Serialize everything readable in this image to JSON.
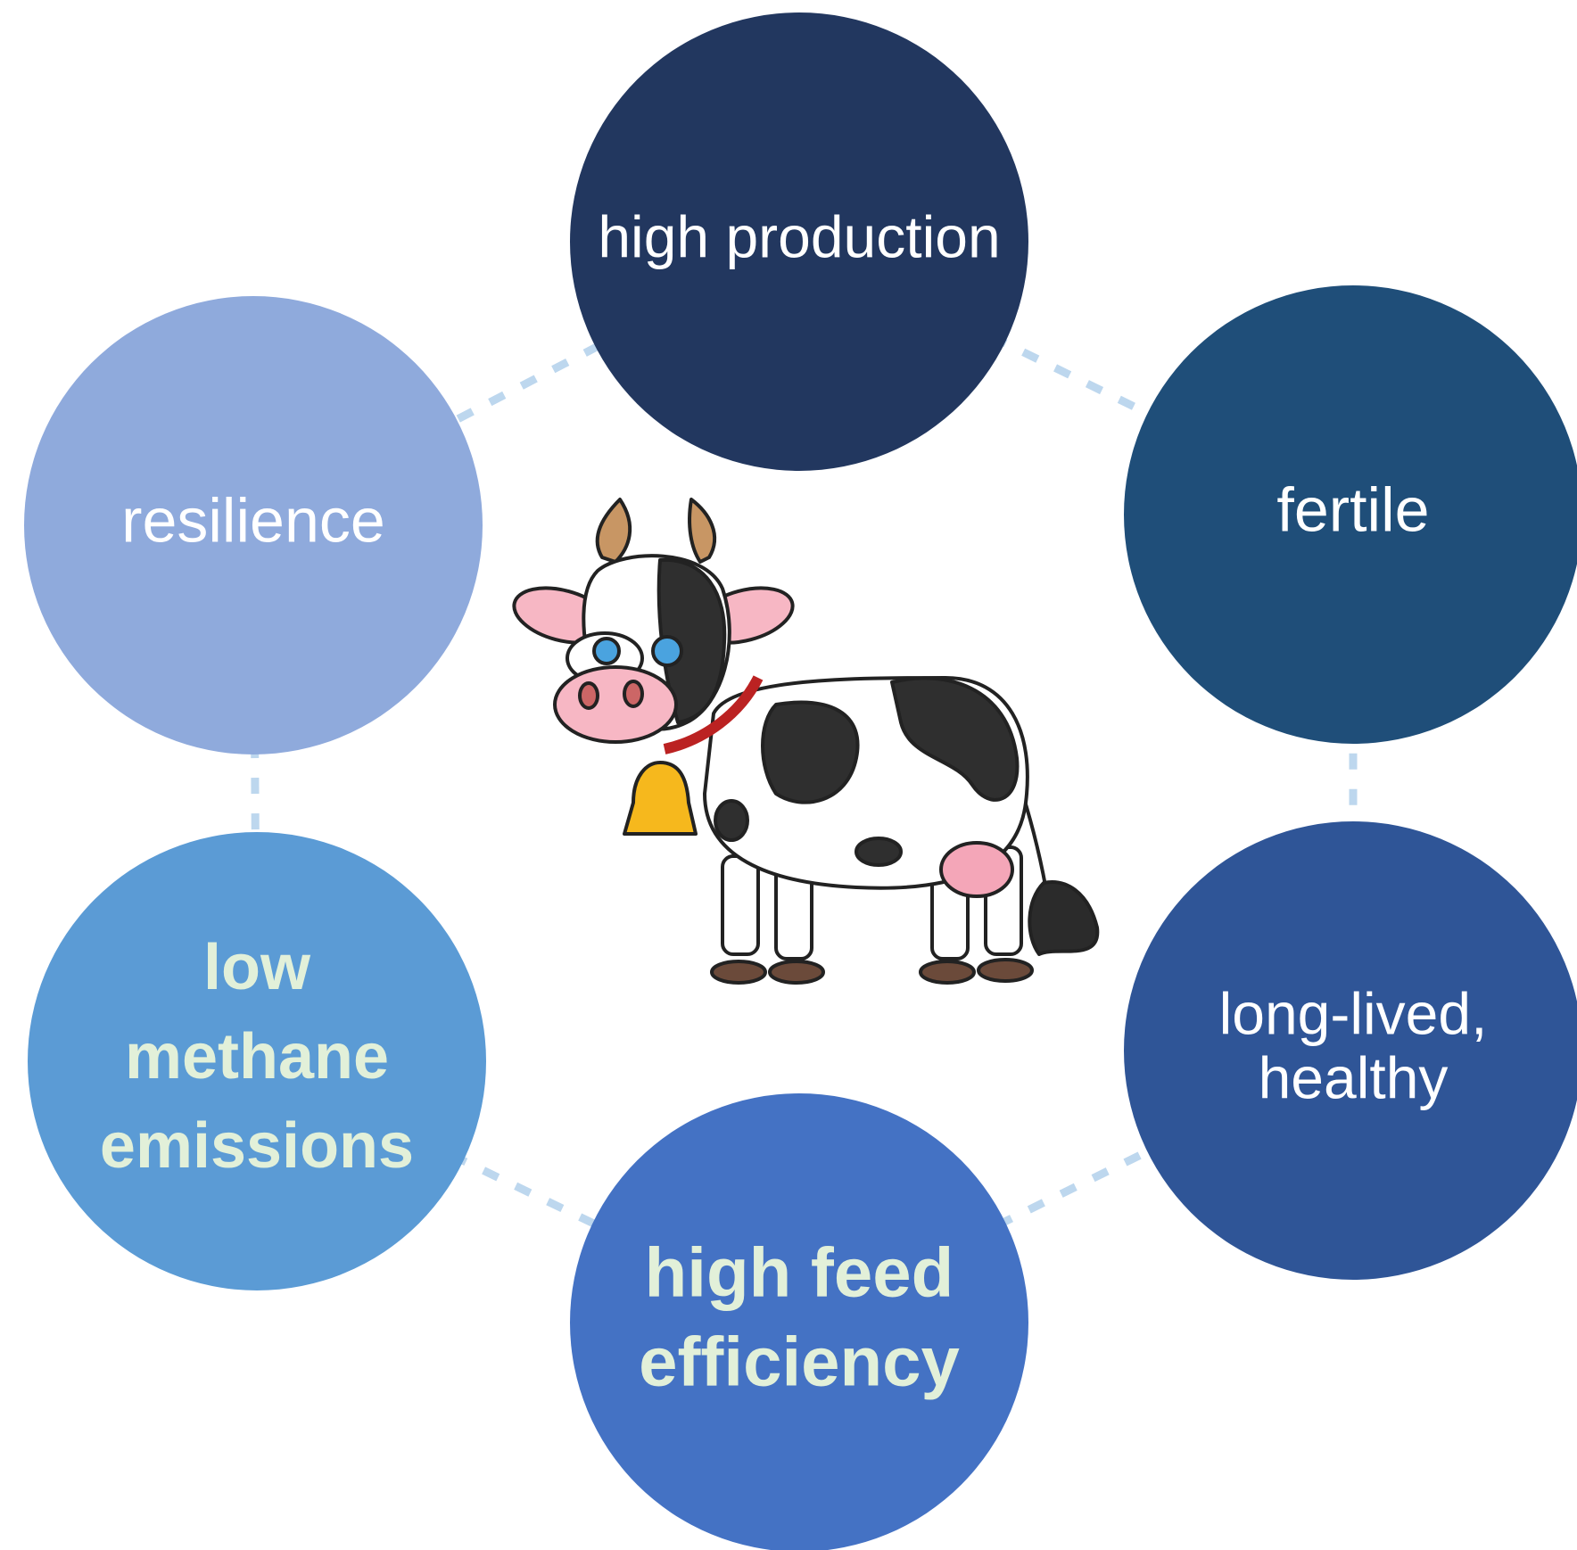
{
  "nodes": [
    {
      "lines": [
        "high production"
      ]
    },
    {
      "lines": [
        "fertile"
      ]
    },
    {
      "lines": [
        "long-lived,",
        "healthy"
      ]
    },
    {
      "lines": [
        "high feed",
        "efficiency"
      ]
    },
    {
      "lines": [
        "low",
        "methane",
        "emissions"
      ]
    },
    {
      "lines": [
        "resilience"
      ]
    }
  ]
}
